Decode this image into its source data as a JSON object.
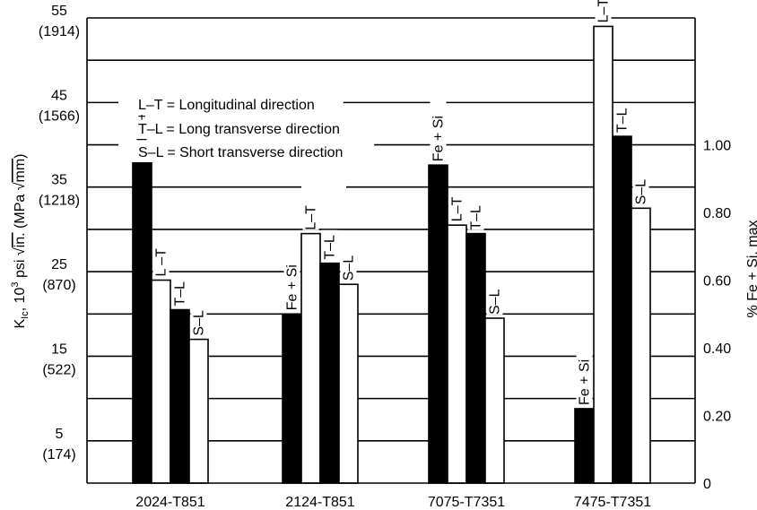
{
  "chart_data": {
    "type": "bar",
    "categories": [
      "2024-T851",
      "2124-T851",
      "7075-T7351",
      "7475-T7351"
    ],
    "bars": [
      [
        {
          "label": "Fe + Si",
          "value": 1.0,
          "axis": "right",
          "fill": "black"
        },
        {
          "label": "L –T",
          "value": 24.0,
          "axis": "left",
          "fill": "white"
        },
        {
          "label": "T–L",
          "value": 20.5,
          "axis": "left",
          "fill": "black"
        },
        {
          "label": "S–L",
          "value": 17.0,
          "axis": "left",
          "fill": "white"
        }
      ],
      [
        {
          "label": "Fe + Si",
          "value": 0.5,
          "axis": "right",
          "fill": "black"
        },
        {
          "label": "L–T",
          "value": 29.5,
          "axis": "left",
          "fill": "white"
        },
        {
          "label": "T–L",
          "value": 26.0,
          "axis": "left",
          "fill": "black"
        },
        {
          "label": "S–L",
          "value": 23.5,
          "axis": "left",
          "fill": "white"
        }
      ],
      [
        {
          "label": "Fe + Si",
          "value": 0.94,
          "axis": "right",
          "fill": "black"
        },
        {
          "label": "L–T",
          "value": 30.5,
          "axis": "left",
          "fill": "white"
        },
        {
          "label": "T–L",
          "value": 29.5,
          "axis": "left",
          "fill": "black"
        },
        {
          "label": "S–L",
          "value": 19.5,
          "axis": "left",
          "fill": "white"
        }
      ],
      [
        {
          "label": "Fe + Si",
          "value": 0.22,
          "axis": "right",
          "fill": "black"
        },
        {
          "label": "L–T",
          "value": 54.0,
          "axis": "left",
          "fill": "white"
        },
        {
          "label": "T–L",
          "value": 41.0,
          "axis": "left",
          "fill": "black"
        },
        {
          "label": "S–L",
          "value": 32.5,
          "axis": "left",
          "fill": "white"
        }
      ]
    ],
    "left_axis": {
      "title": "K",
      "title_sub": "Ic",
      "title_rest": ", 10",
      "title_sup": "3",
      "title_psi": " psi ",
      "title_sqrt1": "in.",
      "title_mid": " (MPa ",
      "title_sqrt2": "mm",
      "title_end": ")",
      "ylim": [
        0,
        55
      ],
      "ticks": [
        {
          "value": 5,
          "label": "5",
          "sub": "(174)"
        },
        {
          "value": 15,
          "label": "15",
          "sub": "(522)"
        },
        {
          "value": 25,
          "label": "25",
          "sub": "(870)"
        },
        {
          "value": 35,
          "label": "35",
          "sub": "(1218)"
        },
        {
          "value": 45,
          "label": "45",
          "sub": "(1566)"
        },
        {
          "value": 55,
          "label": "55",
          "sub": "(1914)"
        }
      ]
    },
    "right_axis": {
      "title": "% Fe + Si, max",
      "ylim": [
        0,
        1.375
      ],
      "ticks": [
        {
          "value": 0,
          "label": "0"
        },
        {
          "value": 0.2,
          "label": "0.20"
        },
        {
          "value": 0.4,
          "label": "0.40"
        },
        {
          "value": 0.6,
          "label": "0.60"
        },
        {
          "value": 0.8,
          "label": "0.80"
        },
        {
          "value": 1.0,
          "label": "1.00"
        }
      ]
    },
    "legend": [
      "L–T = Longitudinal direction",
      "T–L = Long transverse direction",
      "S–L = Short transverse direction"
    ],
    "grid": true,
    "legend_position": "top-left"
  }
}
